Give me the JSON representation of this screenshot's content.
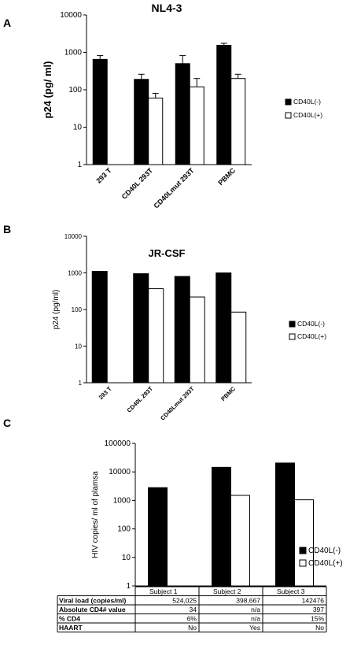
{
  "panels": {
    "a": "A",
    "b": "B",
    "c": "C"
  },
  "colors": {
    "neg": "#000000",
    "pos": "#ffffff",
    "stroke": "#000000"
  },
  "chart_data": [
    {
      "type": "bar",
      "title": "NL4-3",
      "ylabel": "p24 (pg/ ml)",
      "xlabel": "",
      "scale": "log",
      "ylim": [
        1,
        10000
      ],
      "yticks": [
        "1",
        "10",
        "100",
        "1000",
        "10000"
      ],
      "categories": [
        "293 T",
        "CD40L 293T",
        "CD40Lmut 293T",
        "PBMC"
      ],
      "series": [
        {
          "name": "CD40L(-)",
          "values": [
            650,
            190,
            500,
            1550
          ],
          "errors": [
            820,
            260,
            820,
            1750
          ]
        },
        {
          "name": "CD40L(+)",
          "values": [
            null,
            60,
            120,
            200
          ],
          "errors": [
            null,
            80,
            200,
            260
          ]
        }
      ],
      "legend_position": "right",
      "grid": false
    },
    {
      "type": "bar",
      "title": "JR-CSF",
      "ylabel": "p24 (pg/ml)",
      "xlabel": "",
      "scale": "log",
      "ylim": [
        1,
        10000
      ],
      "yticks": [
        "1",
        "10",
        "100",
        "1000",
        "10000"
      ],
      "categories": [
        "293 T",
        "CD40L 293T",
        "CD40Lmut 293T",
        "PBMC"
      ],
      "series": [
        {
          "name": "CD40L(-)",
          "values": [
            1100,
            950,
            800,
            1000
          ]
        },
        {
          "name": "CD40L(+)",
          "values": [
            null,
            370,
            220,
            85
          ]
        }
      ],
      "legend_position": "right",
      "grid": false
    },
    {
      "type": "bar",
      "title": "",
      "ylabel": "HIV copies/ ml of plamsa",
      "xlabel": "",
      "scale": "log",
      "ylim": [
        1,
        100000
      ],
      "yticks": [
        "1",
        "10",
        "100",
        "1000",
        "10000",
        "100000"
      ],
      "categories": [
        "Subject 1",
        "Subject 2",
        "Subject 3"
      ],
      "series": [
        {
          "name": "CD40L(-)",
          "values": [
            2800,
            14500,
            20500
          ]
        },
        {
          "name": "CD40L(+)",
          "values": [
            null,
            1500,
            1050
          ]
        }
      ],
      "legend_position": "right",
      "grid": false
    }
  ],
  "table": {
    "columns": [
      "Subject 1",
      "Subject 2",
      "Subject 3"
    ],
    "rows": [
      {
        "label": "Viral load (copies/ml)",
        "cells": [
          "524,025",
          "398,667",
          "142476"
        ]
      },
      {
        "label": "Absolute CD4# value",
        "cells": [
          "34",
          "n/a",
          "397"
        ]
      },
      {
        "label": "% CD4",
        "cells": [
          "6%",
          "n/a",
          "15%"
        ]
      },
      {
        "label": "HAART",
        "cells": [
          "No",
          "Yes",
          "No"
        ]
      }
    ]
  }
}
